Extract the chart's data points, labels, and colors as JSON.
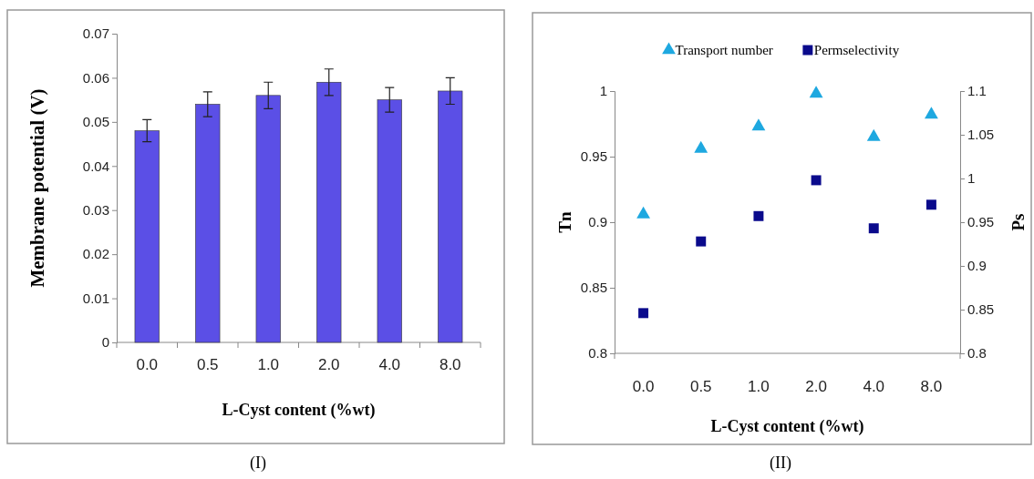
{
  "chart_data": [
    {
      "type": "bar",
      "xlabel": "L-Cyst content (%wt)",
      "ylabel": "Membrane potential (V)",
      "categories": [
        "0.0",
        "0.5",
        "1.0",
        "2.0",
        "4.0",
        "8.0"
      ],
      "values": [
        0.048,
        0.054,
        0.056,
        0.059,
        0.055,
        0.057
      ],
      "errors": [
        0.0025,
        0.0028,
        0.003,
        0.003,
        0.0028,
        0.003
      ],
      "color": "#5b4fe6",
      "ylim": [
        0,
        0.07
      ],
      "yticks": [
        {
          "value": 0,
          "label": "0"
        },
        0.01,
        0.02,
        0.03,
        0.04,
        0.05,
        0.06,
        0.07
      ],
      "grid": false,
      "legend": false,
      "annotations": [
        "(I)"
      ]
    },
    {
      "type": "scatter",
      "xlabel": "L-Cyst content (%wt)",
      "ylabel": "Tn",
      "y2label": "Ps",
      "categories": [
        "0.0",
        "0.5",
        "1.0",
        "2.0",
        "4.0",
        "8.0"
      ],
      "series": [
        {
          "name": "Transport number",
          "color": "#1ea8e0",
          "marker": "triangle",
          "values": [
            0.906,
            0.956,
            0.973,
            0.998,
            0.965,
            0.982
          ]
        },
        {
          "name": "Permselectivity",
          "color": "#0a0a8c",
          "marker": "square",
          "axis": "y2",
          "values": [
            0.846,
            0.928,
            0.957,
            0.998,
            0.943,
            0.97
          ]
        }
      ],
      "ylim": [
        0.8,
        1
      ],
      "yticks": [
        0.8,
        0.85,
        0.9,
        0.95,
        {
          "value": 1,
          "label": "1"
        }
      ],
      "y2lim": [
        0.8,
        1.1
      ],
      "y2ticks": [
        0.8,
        0.85,
        0.9,
        0.95,
        {
          "value": 1,
          "label": "1"
        },
        1.05,
        1.1
      ],
      "grid": false,
      "legend": "top",
      "annotations": [
        "(II)"
      ]
    }
  ]
}
